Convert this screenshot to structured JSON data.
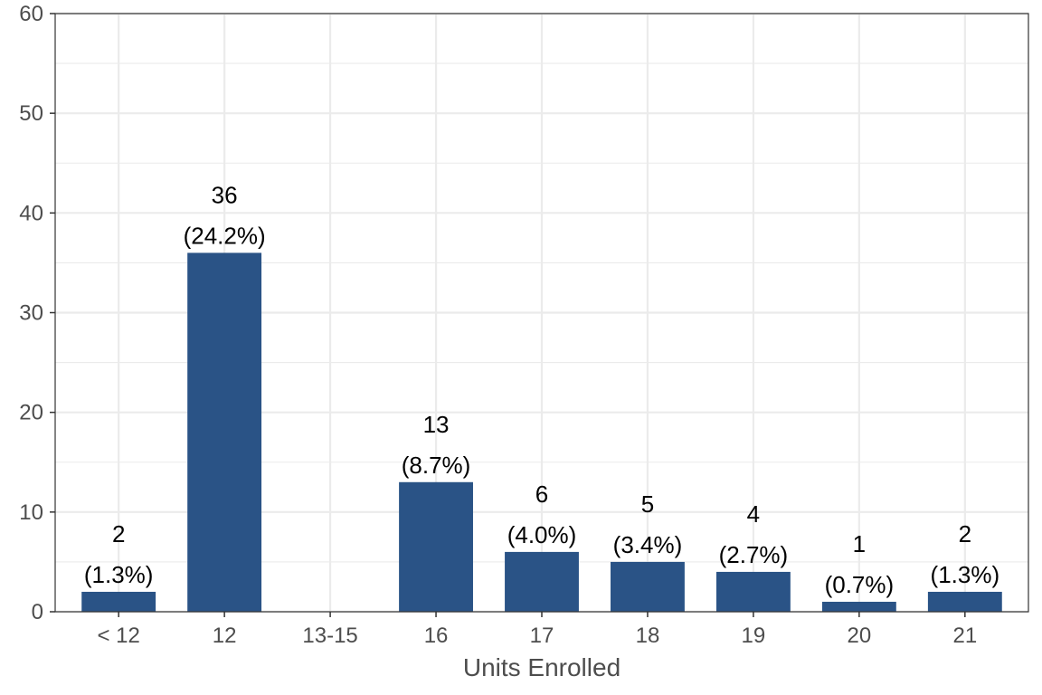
{
  "chart_data": {
    "type": "bar",
    "categories": [
      "< 12",
      "12",
      "13-15",
      "16",
      "17",
      "18",
      "19",
      "20",
      "21"
    ],
    "values": [
      2,
      36,
      0,
      13,
      6,
      5,
      4,
      1,
      2
    ],
    "labels": [
      {
        "count": "2",
        "percent": "(1.3%)"
      },
      {
        "count": "36",
        "percent": "(24.2%)"
      },
      {
        "count": "",
        "percent": ""
      },
      {
        "count": "13",
        "percent": "(8.7%)"
      },
      {
        "count": "6",
        "percent": "(4.0%)"
      },
      {
        "count": "5",
        "percent": "(3.4%)"
      },
      {
        "count": "4",
        "percent": "(2.7%)"
      },
      {
        "count": "1",
        "percent": "(0.7%)"
      },
      {
        "count": "2",
        "percent": "(1.3%)"
      }
    ],
    "xlabel": "Units Enrolled",
    "ylabel": "",
    "ylim": [
      0,
      60
    ],
    "yticks": [
      0,
      10,
      20,
      30,
      40,
      50,
      60
    ],
    "grid": true,
    "bar_color": "#2A5386",
    "grid_color": "#EBEBEB"
  }
}
